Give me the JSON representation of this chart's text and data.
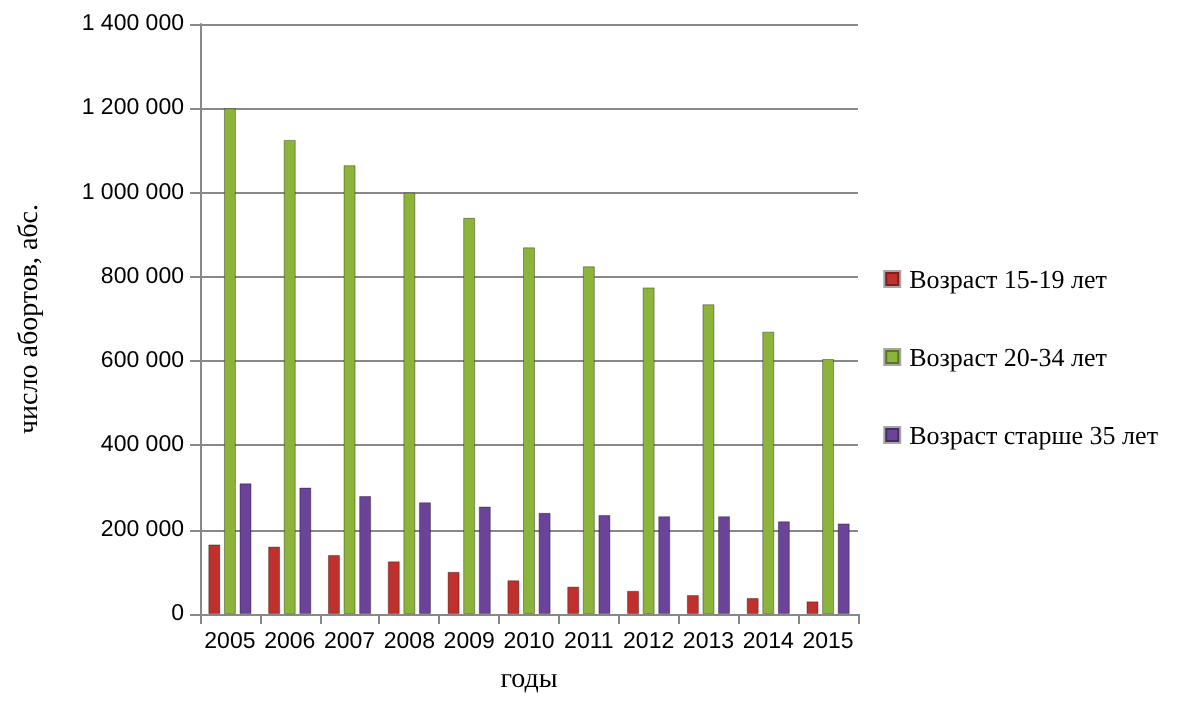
{
  "chart_data": {
    "type": "bar",
    "xlabel": "годы",
    "ylabel": "число абортов, абс.",
    "categories": [
      "2005",
      "2006",
      "2007",
      "2008",
      "2009",
      "2010",
      "2011",
      "2012",
      "2013",
      "2014",
      "2015"
    ],
    "series": [
      {
        "name": "Возраст 15-19 лет",
        "color": "#c0302c",
        "values": [
          165000,
          160000,
          140000,
          125000,
          100000,
          80000,
          65000,
          55000,
          45000,
          38000,
          30000
        ]
      },
      {
        "name": "Возраст 20-34 лет",
        "color": "#8db43a",
        "values": [
          1200000,
          1125000,
          1065000,
          1000000,
          940000,
          870000,
          825000,
          775000,
          735000,
          670000,
          605000
        ]
      },
      {
        "name": "Возраст старше 35 лет",
        "color": "#6b449a",
        "values": [
          310000,
          300000,
          280000,
          265000,
          255000,
          240000,
          235000,
          232000,
          232000,
          220000,
          215000
        ]
      }
    ],
    "ylim": [
      0,
      1400000
    ],
    "yticks": [
      0,
      {
        "value": 200000,
        "label": "200 000"
      },
      {
        "value": 400000,
        "label": "400 000"
      },
      {
        "value": 600000,
        "label": "600 000"
      },
      {
        "value": 800000,
        "label": "800 000"
      },
      {
        "value": 1000000,
        "label": "1 000 000"
      },
      {
        "value": 1200000,
        "label": "1 200 000"
      },
      {
        "value": 1400000,
        "label": "1 400 000"
      }
    ],
    "grid": "y",
    "legend": "right"
  }
}
